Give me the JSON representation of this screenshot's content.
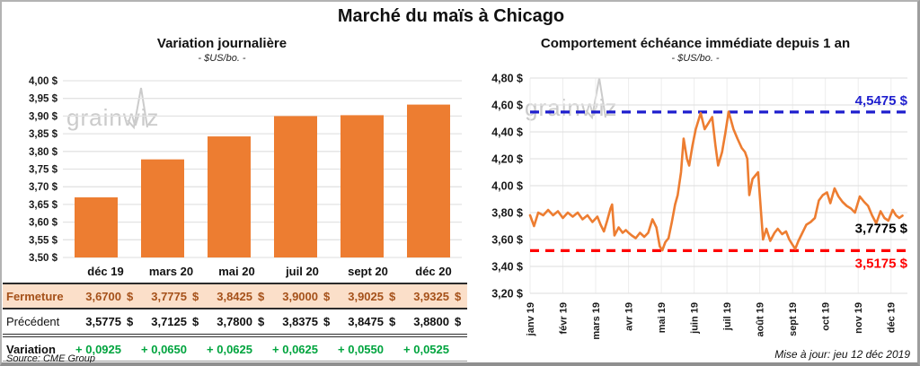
{
  "page": {
    "title": "Marché du maïs à Chicago",
    "watermark": "grainwiz",
    "source": "Source: CME Group",
    "updated": "Mise à jour: jeu 12 déc 2019"
  },
  "colors": {
    "orange": "#ED7D31",
    "peach": "#FBDFC9",
    "rust": "#A5511A",
    "green": "#00A43E",
    "blue": "#1F1FCE",
    "red": "#FF0000",
    "gridline": "#E3E3E3",
    "vgridline": "#EDEDED",
    "watermark": "#CBCBCB"
  },
  "chart_data": [
    {
      "type": "bar",
      "title": "Variation journalière",
      "subtitle": "- $US/bo. -",
      "categories": [
        "déc 19",
        "mars 20",
        "mai 20",
        "juil 20",
        "sept 20",
        "déc 20"
      ],
      "values": [
        3.67,
        3.7775,
        3.8425,
        3.9,
        3.9025,
        3.9325
      ],
      "ylim": [
        3.5,
        4.0
      ],
      "ytick_step": 0.05,
      "ytick_labels": [
        "4,00 $",
        "3,95 $",
        "3,90 $",
        "3,85 $",
        "3,80 $",
        "3,75 $",
        "3,70 $",
        "3,65 $",
        "3,60 $",
        "3,55 $",
        "3,50 $"
      ],
      "bar_color": "#ED7D31",
      "grid": true,
      "legend": false
    },
    {
      "type": "line",
      "title": "Comportement échéance immédiate depuis 1 an",
      "subtitle": "- $US/bo. -",
      "x_labels": [
        "janv 19",
        "févr 19",
        "mars 19",
        "avr 19",
        "mai 19",
        "juin 19",
        "juil 19",
        "août 19",
        "sept 19",
        "oct 19",
        "nov 19",
        "déc 19"
      ],
      "x_max": 11.5,
      "ylim": [
        3.2,
        4.8
      ],
      "ytick_step": 0.2,
      "ytick_labels": [
        "4,80 $",
        "4,60 $",
        "4,40 $",
        "4,20 $",
        "4,00 $",
        "3,80 $",
        "3,60 $",
        "3,40 $",
        "3,20 $"
      ],
      "line_color": "#ED7D31",
      "grid": true,
      "legend": false,
      "points": [
        [
          0.0,
          3.78
        ],
        [
          0.12,
          3.7
        ],
        [
          0.25,
          3.8
        ],
        [
          0.4,
          3.78
        ],
        [
          0.55,
          3.82
        ],
        [
          0.7,
          3.78
        ],
        [
          0.85,
          3.81
        ],
        [
          1.0,
          3.76
        ],
        [
          1.15,
          3.8
        ],
        [
          1.3,
          3.77
        ],
        [
          1.45,
          3.8
        ],
        [
          1.6,
          3.75
        ],
        [
          1.75,
          3.78
        ],
        [
          1.9,
          3.73
        ],
        [
          2.05,
          3.77
        ],
        [
          2.15,
          3.71
        ],
        [
          2.25,
          3.66
        ],
        [
          2.35,
          3.74
        ],
        [
          2.45,
          3.83
        ],
        [
          2.5,
          3.86
        ],
        [
          2.57,
          3.63
        ],
        [
          2.7,
          3.69
        ],
        [
          2.82,
          3.65
        ],
        [
          2.92,
          3.67
        ],
        [
          3.0,
          3.65
        ],
        [
          3.1,
          3.63
        ],
        [
          3.22,
          3.61
        ],
        [
          3.35,
          3.65
        ],
        [
          3.48,
          3.62
        ],
        [
          3.6,
          3.65
        ],
        [
          3.73,
          3.75
        ],
        [
          3.85,
          3.69
        ],
        [
          3.95,
          3.55
        ],
        [
          4.03,
          3.52
        ],
        [
          4.12,
          3.58
        ],
        [
          4.22,
          3.61
        ],
        [
          4.32,
          3.73
        ],
        [
          4.42,
          3.86
        ],
        [
          4.5,
          3.93
        ],
        [
          4.6,
          4.1
        ],
        [
          4.68,
          4.35
        ],
        [
          4.78,
          4.2
        ],
        [
          4.85,
          4.15
        ],
        [
          4.95,
          4.3
        ],
        [
          5.05,
          4.42
        ],
        [
          5.2,
          4.54
        ],
        [
          5.32,
          4.42
        ],
        [
          5.45,
          4.47
        ],
        [
          5.55,
          4.51
        ],
        [
          5.65,
          4.3
        ],
        [
          5.73,
          4.15
        ],
        [
          5.85,
          4.25
        ],
        [
          5.95,
          4.39
        ],
        [
          6.05,
          4.55
        ],
        [
          6.2,
          4.42
        ],
        [
          6.32,
          4.35
        ],
        [
          6.45,
          4.28
        ],
        [
          6.55,
          4.25
        ],
        [
          6.62,
          4.2
        ],
        [
          6.68,
          3.93
        ],
        [
          6.78,
          4.05
        ],
        [
          6.88,
          4.08
        ],
        [
          6.95,
          4.1
        ],
        [
          7.1,
          3.6
        ],
        [
          7.2,
          3.68
        ],
        [
          7.32,
          3.59
        ],
        [
          7.45,
          3.65
        ],
        [
          7.55,
          3.68
        ],
        [
          7.68,
          3.64
        ],
        [
          7.8,
          3.66
        ],
        [
          7.9,
          3.6
        ],
        [
          8.0,
          3.56
        ],
        [
          8.08,
          3.53
        ],
        [
          8.18,
          3.59
        ],
        [
          8.3,
          3.65
        ],
        [
          8.42,
          3.71
        ],
        [
          8.55,
          3.73
        ],
        [
          8.68,
          3.76
        ],
        [
          8.8,
          3.89
        ],
        [
          8.92,
          3.93
        ],
        [
          9.05,
          3.95
        ],
        [
          9.15,
          3.87
        ],
        [
          9.28,
          3.98
        ],
        [
          9.4,
          3.92
        ],
        [
          9.52,
          3.88
        ],
        [
          9.65,
          3.85
        ],
        [
          9.78,
          3.83
        ],
        [
          9.9,
          3.8
        ],
        [
          10.05,
          3.92
        ],
        [
          10.18,
          3.88
        ],
        [
          10.3,
          3.85
        ],
        [
          10.42,
          3.78
        ],
        [
          10.55,
          3.72
        ],
        [
          10.68,
          3.81
        ],
        [
          10.8,
          3.76
        ],
        [
          10.92,
          3.74
        ],
        [
          11.05,
          3.82
        ],
        [
          11.15,
          3.78
        ],
        [
          11.25,
          3.76
        ],
        [
          11.35,
          3.7775
        ]
      ],
      "annotations": [
        {
          "name": "resistance",
          "value": 4.5475,
          "label": "4,5475 $",
          "color": "#1F1FCE",
          "line": "dashed",
          "label_position": "above"
        },
        {
          "name": "last-price",
          "value": 3.7775,
          "label": "3,7775 $",
          "color": "#000000",
          "line": "none",
          "label_position": "below"
        },
        {
          "name": "support",
          "value": 3.5175,
          "label": "3,5175 $",
          "color": "#FF0000",
          "line": "dashed",
          "label_position": "below"
        }
      ]
    }
  ],
  "table": {
    "col_headers": [
      "déc 19",
      "mars 20",
      "mai 20",
      "juil 20",
      "sept 20",
      "déc 20"
    ],
    "rows": [
      {
        "label": "Fermeture",
        "currency": "$",
        "values": [
          "3,6700",
          "3,7775",
          "3,8425",
          "3,9000",
          "3,9025",
          "3,9325"
        ]
      },
      {
        "label": "Précédent",
        "currency": "$",
        "values": [
          "3,5775",
          "3,7125",
          "3,7800",
          "3,8375",
          "3,8475",
          "3,8800"
        ]
      },
      {
        "label": "Variation",
        "currency": null,
        "values": [
          "+ 0,0925",
          "+ 0,0650",
          "+ 0,0625",
          "+ 0,0625",
          "+ 0,0550",
          "+ 0,0525"
        ]
      }
    ]
  }
}
